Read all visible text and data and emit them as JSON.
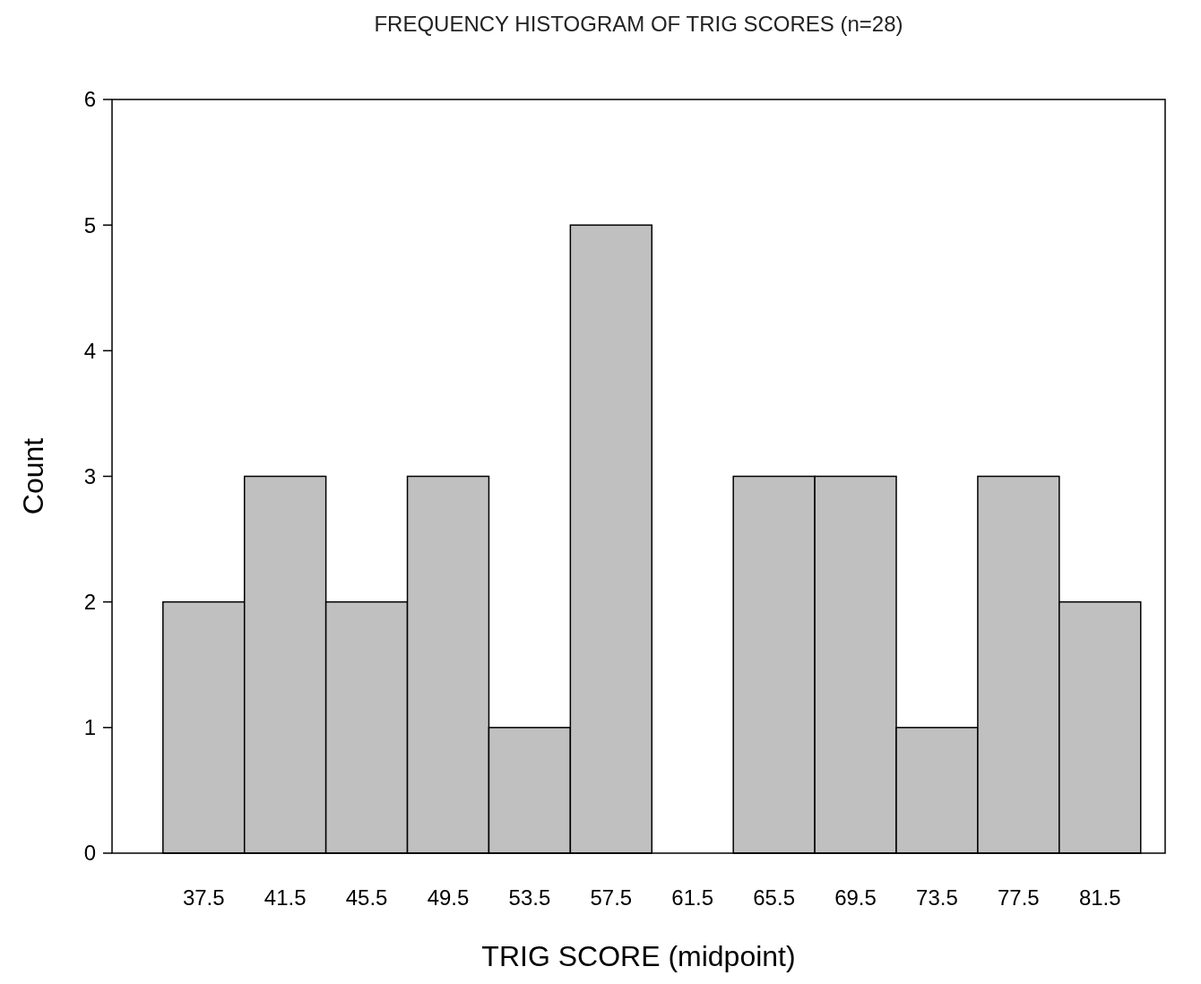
{
  "chart_data": {
    "type": "histogram",
    "title": "FREQUENCY HISTOGRAM OF TRIG SCORES  (n=28)",
    "xlabel": "TRIG SCORE  (midpoint)",
    "ylabel": "Count",
    "bins": [
      35.5,
      39.5,
      43.5,
      47.5,
      51.5,
      55.5,
      59.5,
      63.5,
      67.5,
      71.5,
      75.5,
      79.5,
      83.5
    ],
    "values": [
      2,
      3,
      2,
      3,
      1,
      5,
      0,
      3,
      3,
      1,
      3,
      2
    ],
    "color": "#c0c0c0",
    "xlim": [
      33,
      84.7
    ],
    "xticks": [
      37.5,
      41.5,
      45.5,
      49.5,
      53.5,
      57.5,
      61.5,
      65.5,
      69.5,
      73.5,
      77.5,
      81.5
    ],
    "ylim": [
      0,
      6
    ],
    "yticks": [
      0,
      1,
      2,
      3,
      4,
      5,
      6
    ],
    "grid": false
  }
}
